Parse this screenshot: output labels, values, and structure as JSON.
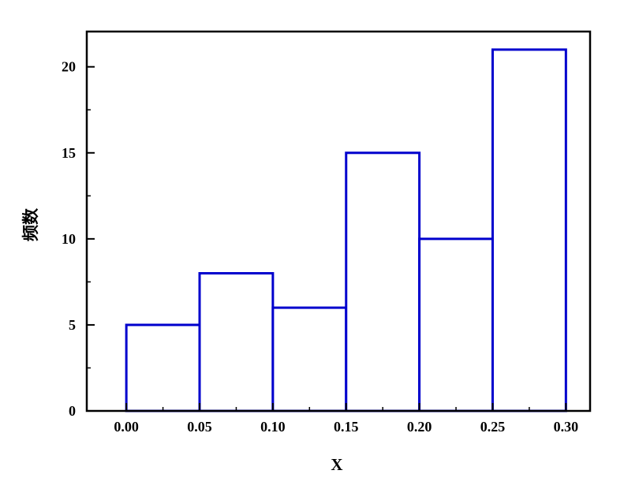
{
  "chart_data": {
    "type": "bar",
    "subtype": "histogram",
    "title": "",
    "xlabel": "X",
    "ylabel": "频数",
    "bin_edges": [
      0.0,
      0.05,
      0.1,
      0.15,
      0.2,
      0.25,
      0.3
    ],
    "values": [
      5,
      8,
      6,
      15,
      10,
      21
    ],
    "x_tick_labels": [
      "0.00",
      "0.05",
      "0.10",
      "0.15",
      "0.20",
      "0.25",
      "0.30"
    ],
    "x_tick_values": [
      0.0,
      0.05,
      0.1,
      0.15,
      0.2,
      0.25,
      0.3
    ],
    "y_tick_labels": [
      "0",
      "5",
      "10",
      "15",
      "20"
    ],
    "y_tick_values": [
      0,
      5,
      10,
      15,
      20
    ],
    "x_minor_step": 0.025,
    "y_minor_step": 2.5,
    "xlim": [
      -0.027,
      0.3165
    ],
    "ylim": [
      0,
      22.05
    ],
    "grid": false,
    "legend": "none",
    "bar_stroke_color": "#0000CD",
    "bar_fill_color": "#FFFFFF",
    "axis_color": "#000000",
    "background_color": "#FFFFFF"
  }
}
